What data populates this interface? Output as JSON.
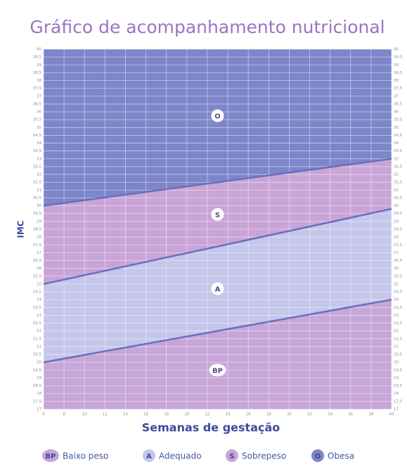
{
  "chart_data": {
    "type": "zones",
    "title": "Gráfico de acompanhamento nutricional",
    "x_label": "Semanas de gestação",
    "y_label": "IMC",
    "x": [
      6,
      40
    ],
    "xlim": [
      6,
      40
    ],
    "xticks": [
      6,
      8,
      10,
      12,
      14,
      16,
      18,
      20,
      22,
      24,
      26,
      28,
      30,
      32,
      34,
      36,
      38,
      40
    ],
    "ylim": [
      17,
      40
    ],
    "yticks": [
      17,
      {
        "value": 17.5,
        "label": "17,5"
      },
      18,
      {
        "value": 18.5,
        "label": "18,5"
      },
      19,
      {
        "value": 19.5,
        "label": "19,5"
      },
      20,
      {
        "value": 20.5,
        "label": "20,5"
      },
      21,
      {
        "value": 21.5,
        "label": "21,5"
      },
      22,
      {
        "value": 22.5,
        "label": "22,5"
      },
      23,
      {
        "value": 23.5,
        "label": "23,5"
      },
      24,
      {
        "value": 24.5,
        "label": "24,5"
      },
      25,
      {
        "value": 25.5,
        "label": "25,5"
      },
      26,
      {
        "value": 26.5,
        "label": "26,5"
      },
      27,
      {
        "value": 27.5,
        "label": "27,5"
      },
      28,
      {
        "value": 28.5,
        "label": "28,5"
      },
      29,
      {
        "value": 29.5,
        "label": "29,5"
      },
      30,
      {
        "value": 30.5,
        "label": "30,5"
      },
      31,
      {
        "value": 31.5,
        "label": "31,5"
      },
      32,
      {
        "value": 32.5,
        "label": "32,5"
      },
      33,
      {
        "value": 33.5,
        "label": "33,5"
      },
      34,
      {
        "value": 34.5,
        "label": "34,5"
      },
      35,
      {
        "value": 35.5,
        "label": "35,5"
      },
      36,
      {
        "value": 36.5,
        "label": "36,5"
      },
      37,
      {
        "value": 37.5,
        "label": "37,5"
      },
      38,
      {
        "value": 38.5,
        "label": "38,5"
      },
      39,
      {
        "value": 39.5,
        "label": "39,5"
      },
      40
    ],
    "grid": true,
    "series": [
      {
        "name": "Baixo peso",
        "label": "BP",
        "color": "#c7a6d8",
        "values": [
          20,
          24
        ]
      },
      {
        "name": "Adequado",
        "label": "A",
        "color": "#c4c6ea",
        "values": [
          25,
          29.8
        ]
      },
      {
        "name": "Sobrepeso",
        "label": "S",
        "color": "#c9a4d6",
        "values": [
          30,
          33
        ]
      },
      {
        "name": "Obesa",
        "label": "O",
        "color": "#7d86c9"
      }
    ]
  }
}
